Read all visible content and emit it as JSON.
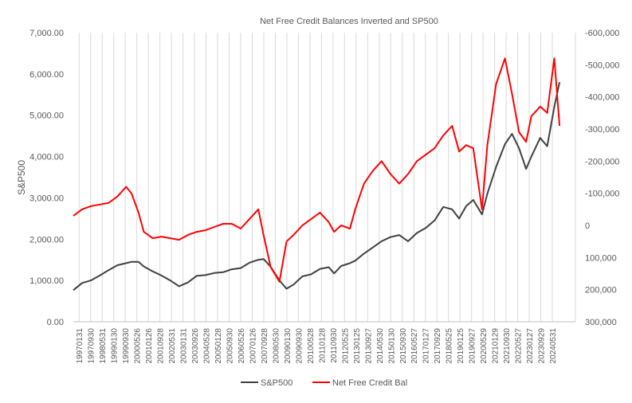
{
  "chart_data": {
    "type": "line",
    "title": "Net Free Credit Balances Inverted and SP500",
    "ylabel": "S&P500",
    "ylabel_right": "",
    "xlabel": "",
    "ylim_left": [
      0,
      7000
    ],
    "ylim_right": [
      -600000,
      300000
    ],
    "right_axis_inverted": true,
    "grid": "vertical",
    "legend_placement": "bottom",
    "yticks_left": [
      "0.00",
      "1,000.00",
      "2,000.00",
      "3,000.00",
      "4,000.00",
      "5,000.00",
      "6,000.00",
      "7,000.00"
    ],
    "yticks_right": [
      "-600,000",
      "-500,000",
      "-400,000",
      "-300,000",
      "-200,000",
      "-100,000",
      "0",
      "100,000",
      "200,000",
      "300,000"
    ],
    "yticks_right_values": [
      -600000,
      -500000,
      -400000,
      -300000,
      -200000,
      -100000,
      0,
      100000,
      200000,
      300000
    ],
    "xticks": [
      "19970131",
      "19970930",
      "19980531",
      "19990130",
      "19990930",
      "20000526",
      "20010126",
      "20010928",
      "20020531",
      "20030131",
      "20030926",
      "20040528",
      "20050128",
      "20050930",
      "20060526",
      "20070126",
      "20070928",
      "20080530",
      "20090130",
      "20090930",
      "20100528",
      "20110128",
      "20110930",
      "20120525",
      "20130125",
      "20130927",
      "20140530",
      "20150130",
      "20150930",
      "20160527",
      "20170127",
      "20170929",
      "20180525",
      "20190125",
      "20190927",
      "20200529",
      "20210129",
      "20210930",
      "20220527",
      "20230127",
      "20230929",
      "20240531"
    ],
    "x": [
      1997.0,
      1997.5,
      1998.0,
      1998.5,
      1999.0,
      1999.5,
      2000.0,
      2000.3,
      2000.7,
      2001.0,
      2001.5,
      2002.0,
      2002.5,
      2003.0,
      2003.5,
      2004.0,
      2004.5,
      2005.0,
      2005.5,
      2006.0,
      2006.5,
      2007.0,
      2007.5,
      2007.8,
      2008.2,
      2008.7,
      2009.1,
      2009.5,
      2010.0,
      2010.5,
      2011.0,
      2011.5,
      2011.8,
      2012.2,
      2012.7,
      2013.0,
      2013.5,
      2014.0,
      2014.5,
      2015.0,
      2015.5,
      2016.0,
      2016.5,
      2017.0,
      2017.5,
      2018.0,
      2018.5,
      2018.9,
      2019.3,
      2019.7,
      2020.2,
      2020.5,
      2021.0,
      2021.5,
      2021.9,
      2022.3,
      2022.7,
      2023.0,
      2023.5,
      2023.9,
      2024.3,
      2024.6
    ],
    "series": [
      {
        "name": "S&P500",
        "color": "#404040",
        "axis": "left",
        "values": [
          766,
          940,
          1000,
          1120,
          1250,
          1370,
          1420,
          1450,
          1450,
          1340,
          1220,
          1120,
          1000,
          860,
          950,
          1110,
          1130,
          1180,
          1200,
          1270,
          1300,
          1430,
          1500,
          1520,
          1330,
          1000,
          800,
          900,
          1100,
          1150,
          1280,
          1320,
          1170,
          1350,
          1420,
          1480,
          1650,
          1800,
          1950,
          2050,
          2100,
          1950,
          2150,
          2270,
          2450,
          2780,
          2720,
          2500,
          2800,
          2950,
          2600,
          3100,
          3750,
          4300,
          4550,
          4200,
          3700,
          4000,
          4450,
          4250,
          5200,
          5800
        ]
      },
      {
        "name": "Net Free Credit Bal",
        "color": "#ff0000",
        "axis": "right",
        "values": [
          -30000,
          -50000,
          -60000,
          -65000,
          -70000,
          -90000,
          -120000,
          -100000,
          -40000,
          20000,
          40000,
          35000,
          40000,
          45000,
          30000,
          20000,
          15000,
          5000,
          -5000,
          -5000,
          10000,
          -20000,
          -50000,
          30000,
          130000,
          175000,
          50000,
          30000,
          0,
          -20000,
          -40000,
          -10000,
          20000,
          0,
          10000,
          -50000,
          -130000,
          -170000,
          -200000,
          -160000,
          -130000,
          -160000,
          -200000,
          -220000,
          -240000,
          -280000,
          -310000,
          -230000,
          -250000,
          -240000,
          -50000,
          -250000,
          -440000,
          -520000,
          -410000,
          -290000,
          -260000,
          -340000,
          -370000,
          -350000,
          -520000,
          -310000
        ]
      }
    ]
  }
}
